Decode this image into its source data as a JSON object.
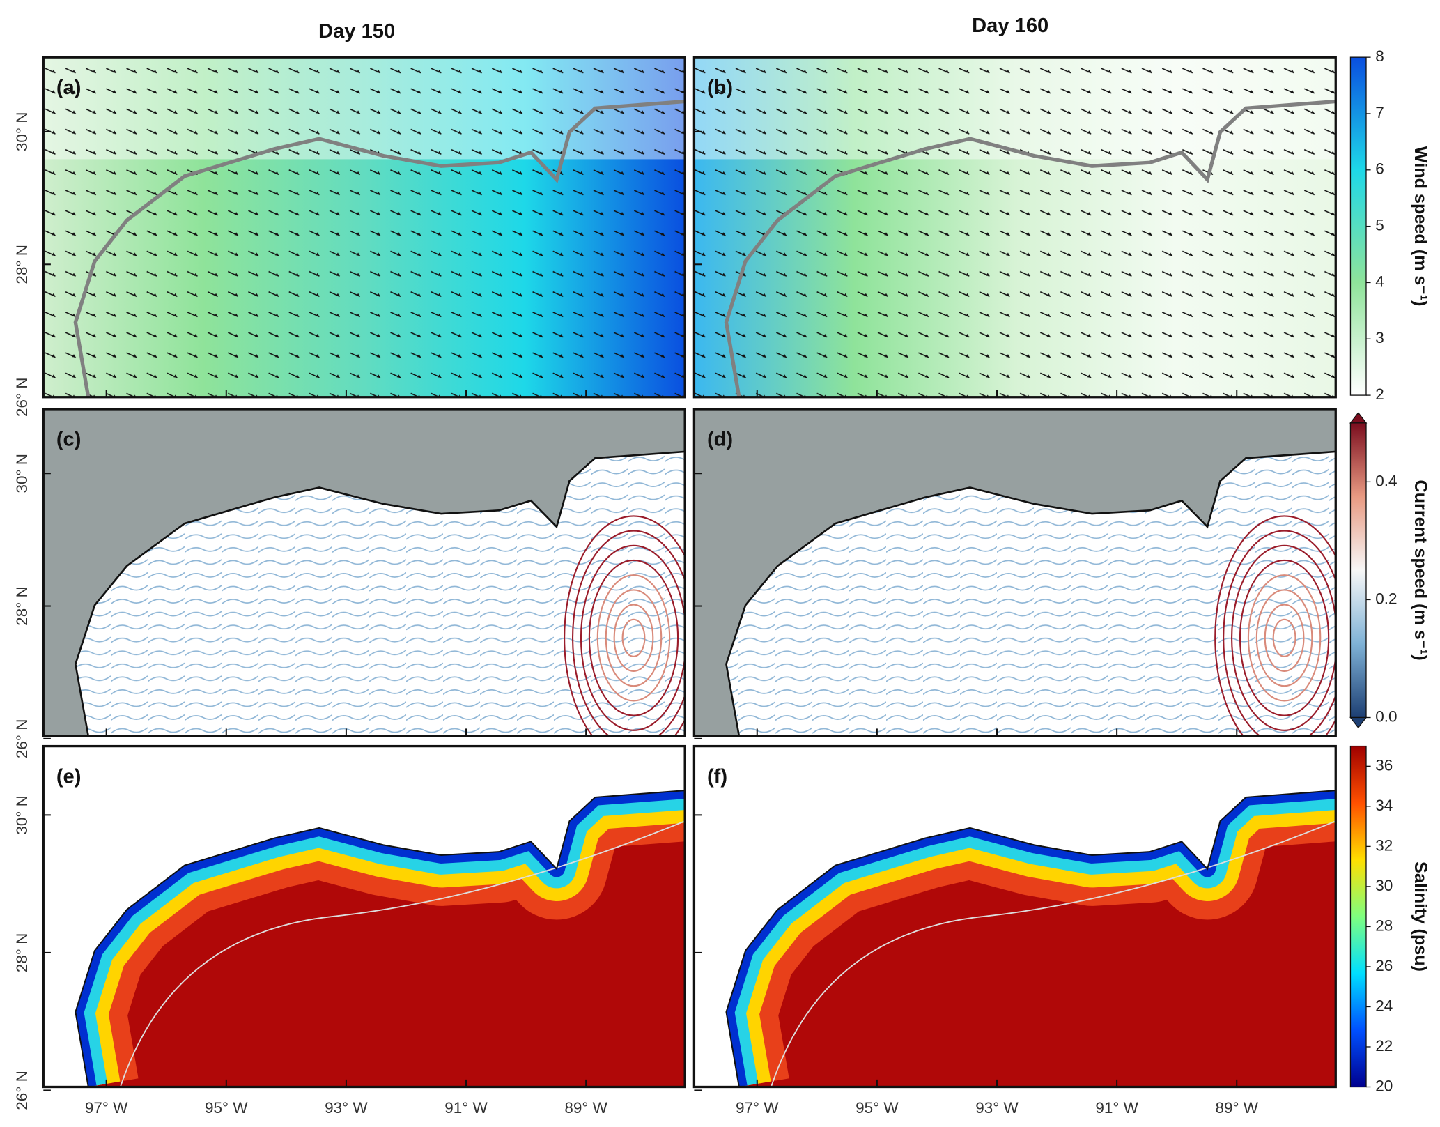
{
  "columns": [
    "Day 150",
    "Day 160"
  ],
  "panels": [
    {
      "label": "(a)",
      "field": "wind"
    },
    {
      "label": "(b)",
      "field": "wind"
    },
    {
      "label": "(c)",
      "field": "current"
    },
    {
      "label": "(d)",
      "field": "current"
    },
    {
      "label": "(e)",
      "field": "salinity"
    },
    {
      "label": "(f)",
      "field": "salinity"
    }
  ],
  "lonlim": [
    -98.05,
    -87.35
  ],
  "lon_ticks": [
    {
      "value": -97,
      "label": "97° W"
    },
    {
      "value": -95,
      "label": "95° W"
    },
    {
      "value": -93,
      "label": "93° W"
    },
    {
      "value": -91,
      "label": "91° W"
    },
    {
      "value": -89,
      "label": "89° W"
    }
  ],
  "rows": [
    {
      "latlim": [
        26,
        31.12
      ],
      "lat_ticks": [
        {
          "value": 26,
          "label": "26° N"
        },
        {
          "value": 28,
          "label": "28° N"
        },
        {
          "value": 30,
          "label": "30° N"
        }
      ]
    },
    {
      "latlim": [
        26.04,
        30.97
      ],
      "lat_ticks": [
        {
          "value": 26,
          "label": "26° N"
        },
        {
          "value": 28,
          "label": "28° N"
        },
        {
          "value": 30,
          "label": "30° N"
        }
      ]
    },
    {
      "latlim": [
        26.05,
        31.0
      ],
      "lat_ticks": [
        {
          "value": 26,
          "label": "26° N"
        },
        {
          "value": 28,
          "label": "28° N"
        },
        {
          "value": 30,
          "label": "30° N"
        }
      ]
    }
  ],
  "colorbars": [
    {
      "label": "Wind speed (m s⁻¹)",
      "lim": [
        2,
        8
      ],
      "ticks": [
        2,
        3,
        4,
        5,
        6,
        7,
        8
      ],
      "colors": [
        "#ffffff",
        "#8fe39a",
        "#1ed8e8",
        "#0a4fe0"
      ]
    },
    {
      "label": "Current speed (m s⁻¹)",
      "lim": [
        0,
        0.5
      ],
      "ticks": [
        {
          "value": 0,
          "label": "0.0"
        },
        0.2,
        0.4
      ],
      "colors": [
        "#1d3f73",
        "#7fb2d6",
        "#f7f7f7",
        "#e89a82",
        "#7b0d1e"
      ]
    },
    {
      "label": "Salinity (psu)",
      "lim": [
        20,
        37
      ],
      "ticks": [
        20,
        22,
        24,
        26,
        28,
        30,
        32,
        34,
        36
      ],
      "colors": [
        "#00008f",
        "#0050ff",
        "#00dfff",
        "#7fff7f",
        "#ffdf00",
        "#ff5000",
        "#a00000"
      ]
    }
  ]
}
